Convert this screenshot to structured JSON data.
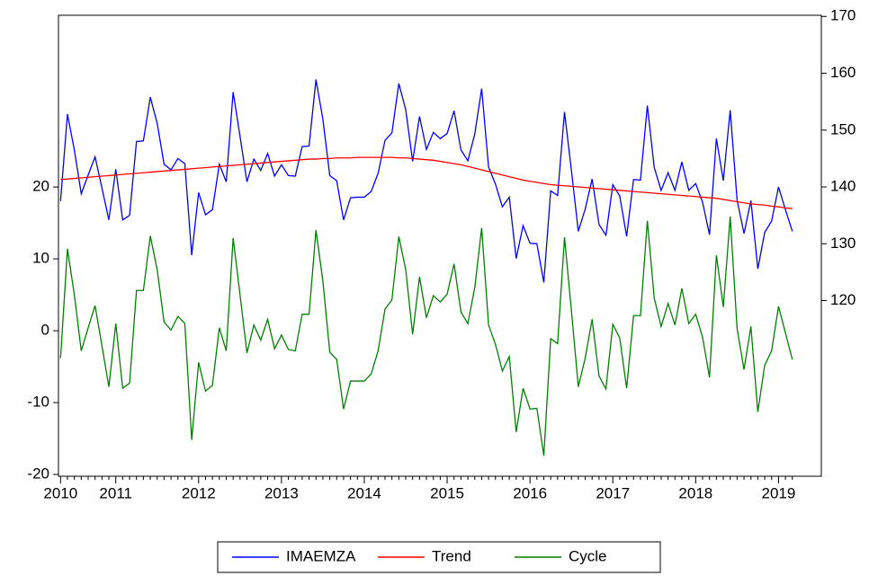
{
  "chart_data": {
    "type": "line",
    "categories": [
      "2010",
      null,
      null,
      null,
      null,
      null,
      null,
      null,
      "2011",
      null,
      null,
      null,
      null,
      null,
      null,
      null,
      null,
      null,
      null,
      null,
      "2012",
      null,
      null,
      null,
      null,
      null,
      null,
      null,
      null,
      null,
      null,
      null,
      "2013",
      null,
      null,
      null,
      null,
      null,
      null,
      null,
      null,
      null,
      null,
      null,
      "2014",
      null,
      null,
      null,
      null,
      null,
      null,
      null,
      null,
      null,
      null,
      null,
      "2015",
      null,
      null,
      null,
      null,
      null,
      null,
      null,
      null,
      null,
      null,
      null,
      "2016",
      null,
      null,
      null,
      null,
      null,
      null,
      null,
      null,
      null,
      null,
      null,
      "2017",
      null,
      null,
      null,
      null,
      null,
      null,
      null,
      null,
      null,
      null,
      null,
      "2018",
      null,
      null,
      null,
      null,
      null,
      null,
      null,
      null,
      null,
      null,
      null,
      "2019",
      null,
      null
    ],
    "series": [
      {
        "name": "IMAEMZA",
        "color": "#0000ff",
        "axis": "y2",
        "values": [
          137.5,
          152.8,
          146.5,
          138.8,
          142.1,
          145.3,
          139.8,
          134.2,
          143.1,
          134.2,
          135.0,
          148.0,
          148.1,
          155.8,
          151.2,
          144.0,
          143.0,
          145.0,
          144.1,
          128.0,
          139.0,
          135.1,
          136.0,
          144.0,
          140.9,
          156.7,
          148.9,
          140.9,
          144.9,
          142.9,
          145.9,
          141.9,
          143.9,
          142.0,
          141.9,
          147.1,
          147.2,
          158.9,
          151.9,
          142.0,
          141.1,
          134.2,
          138.1,
          138.2,
          138.2,
          139.2,
          142.4,
          148.2,
          149.5,
          158.2,
          153.6,
          144.5,
          152.4,
          146.6,
          149.6,
          148.5,
          149.4,
          153.4,
          146.5,
          144.6,
          149.3,
          157.3,
          143.5,
          140.5,
          136.5,
          138.2,
          127.4,
          133.2,
          130.1,
          130.0,
          123.2,
          139.3,
          138.5,
          153.2,
          142.9,
          132.2,
          136.1,
          141.4,
          133.4,
          131.5,
          140.4,
          138.4,
          131.3,
          141.3,
          141.2,
          154.3,
          143.4,
          139.4,
          142.5,
          139.4,
          144.4,
          139.4,
          140.6,
          137.3,
          131.6,
          148.5,
          141.1,
          153.5,
          137.7,
          131.8,
          137.6,
          125.6,
          132.0,
          134.0,
          140.0,
          136.0,
          132.2
        ]
      },
      {
        "name": "Trend",
        "color": "#ff0000",
        "axis": "y2",
        "values": [
          141.3,
          141.4,
          141.5,
          141.6,
          141.7,
          141.8,
          141.9,
          142.0,
          142.1,
          142.2,
          142.3,
          142.4,
          142.5,
          142.6,
          142.7,
          142.8,
          142.9,
          143.0,
          143.1,
          143.2,
          143.3,
          143.4,
          143.5,
          143.6,
          143.7,
          143.8,
          143.9,
          144.0,
          144.1,
          144.2,
          144.3,
          144.4,
          144.5,
          144.6,
          144.7,
          144.8,
          144.9,
          144.9,
          145.0,
          145.0,
          145.1,
          145.1,
          145.1,
          145.2,
          145.2,
          145.2,
          145.2,
          145.2,
          145.2,
          145.1,
          145.1,
          145.0,
          144.9,
          144.8,
          144.7,
          144.5,
          144.3,
          144.1,
          143.9,
          143.6,
          143.3,
          143.0,
          142.7,
          142.4,
          142.1,
          141.8,
          141.5,
          141.2,
          141.0,
          140.8,
          140.6,
          140.4,
          140.3,
          140.2,
          140.1,
          140.0,
          139.9,
          139.8,
          139.7,
          139.6,
          139.5,
          139.4,
          139.3,
          139.2,
          139.1,
          139.0,
          138.9,
          138.8,
          138.7,
          138.6,
          138.5,
          138.4,
          138.3,
          138.2,
          138.1,
          138.0,
          137.8,
          137.6,
          137.4,
          137.2,
          137.0,
          136.9,
          136.8,
          136.6,
          136.5,
          136.3,
          136.2
        ]
      },
      {
        "name": "Cycle",
        "color": "#008000",
        "axis": "y",
        "values": [
          -3.8,
          11.4,
          5.0,
          -2.8,
          0.4,
          3.5,
          -2.1,
          -7.8,
          1.0,
          -8.0,
          -7.3,
          5.6,
          5.6,
          13.2,
          8.5,
          1.2,
          0.1,
          2.0,
          1.0,
          -15.2,
          -4.4,
          -8.4,
          -7.6,
          0.4,
          -2.8,
          12.9,
          5.0,
          -3.1,
          0.8,
          -1.3,
          1.6,
          -2.5,
          -0.6,
          -2.6,
          -2.8,
          2.3,
          2.3,
          14.0,
          6.9,
          -3.0,
          -4.0,
          -10.9,
          -7.0,
          -7.0,
          -7.0,
          -6.0,
          -2.8,
          3.0,
          4.3,
          13.1,
          8.5,
          -0.5,
          7.5,
          1.8,
          4.9,
          4.0,
          5.1,
          9.3,
          2.6,
          1.0,
          6.0,
          14.3,
          0.8,
          -1.9,
          -5.6,
          -3.6,
          -14.1,
          -8.0,
          -10.9,
          -10.8,
          -17.4,
          -1.1,
          -1.8,
          13.0,
          2.8,
          -7.8,
          -3.8,
          1.6,
          -6.3,
          -8.1,
          0.9,
          -1.0,
          -8.0,
          2.1,
          2.1,
          15.3,
          4.5,
          0.6,
          3.8,
          0.8,
          5.9,
          1.0,
          2.3,
          -0.9,
          -6.5,
          10.5,
          3.3,
          15.9,
          0.3,
          -5.4,
          0.6,
          -11.3,
          -4.8,
          -2.8,
          3.4,
          -0.3,
          -4.0
        ]
      }
    ],
    "ylim": [
      -20.25,
      43.9
    ],
    "yticks": [
      -20,
      -10,
      0,
      10,
      20
    ],
    "y2lim": [
      89.1,
      170.2
    ],
    "y2ticks": [
      120,
      130,
      140,
      150,
      160,
      170
    ],
    "grid": false,
    "legend": "bottom"
  }
}
